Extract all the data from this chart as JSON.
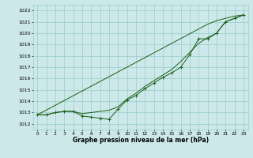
{
  "x": [
    0,
    1,
    2,
    3,
    4,
    5,
    6,
    7,
    8,
    9,
    10,
    11,
    12,
    13,
    14,
    15,
    16,
    17,
    18,
    19,
    20,
    21,
    22,
    23
  ],
  "line_measured": [
    1012.8,
    1012.8,
    1013.0,
    1013.1,
    1013.1,
    1012.7,
    1012.6,
    1012.5,
    1012.4,
    1013.3,
    1014.1,
    1014.5,
    1015.1,
    1015.6,
    1016.1,
    1016.5,
    1017.0,
    1018.1,
    1019.5,
    1019.5,
    1020.0,
    1021.0,
    1021.3,
    1021.6
  ],
  "line_smooth": [
    1012.8,
    1012.8,
    1013.0,
    1013.1,
    1013.1,
    1012.9,
    1013.0,
    1013.1,
    1013.2,
    1013.5,
    1014.2,
    1014.7,
    1015.3,
    1015.8,
    1016.3,
    1016.8,
    1017.5,
    1018.3,
    1019.1,
    1019.6,
    1020.0,
    1021.0,
    1021.3,
    1021.6
  ],
  "line_trend": [
    1012.8,
    1013.22,
    1013.64,
    1014.06,
    1014.48,
    1014.9,
    1015.32,
    1015.74,
    1016.16,
    1016.58,
    1017.0,
    1017.42,
    1017.84,
    1018.26,
    1018.68,
    1019.1,
    1019.52,
    1019.94,
    1020.36,
    1020.78,
    1021.1,
    1021.3,
    1021.5,
    1021.6
  ],
  "line_color": "#1a5e1a",
  "bg_color": "#cce8e8",
  "grid_color": "#99cccc",
  "xlabel": "Graphe pression niveau de la mer (hPa)",
  "ylim": [
    1011.5,
    1022.5
  ],
  "xlim": [
    -0.5,
    23.5
  ],
  "yticks": [
    1012,
    1013,
    1014,
    1015,
    1016,
    1017,
    1018,
    1019,
    1020,
    1021,
    1022
  ]
}
